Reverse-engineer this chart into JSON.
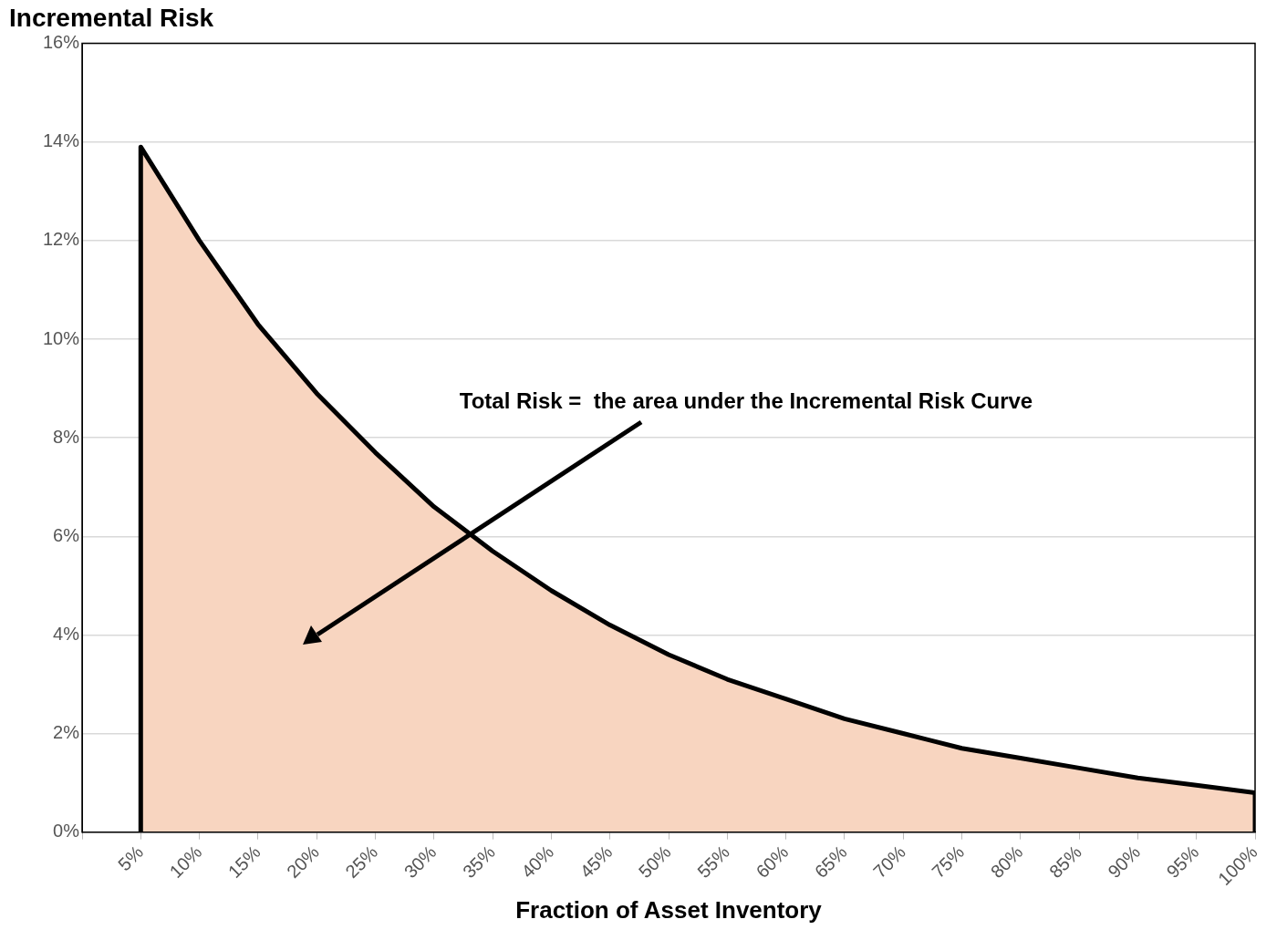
{
  "chart_data": {
    "type": "area",
    "title": "Incremental Risk",
    "xlabel": "Fraction of Asset Inventory",
    "x": [
      5,
      5,
      10,
      15,
      20,
      25,
      30,
      35,
      40,
      45,
      50,
      55,
      60,
      65,
      70,
      75,
      80,
      85,
      90,
      95,
      100,
      100
    ],
    "series": [
      {
        "color": "#f8d5c0",
        "values": [
          0,
          13.9,
          12.0,
          10.3,
          8.9,
          7.7,
          6.6,
          5.7,
          4.9,
          4.2,
          3.6,
          3.1,
          2.7,
          2.3,
          2.0,
          1.7,
          1.5,
          1.3,
          1.1,
          0.95,
          0.8,
          0
        ]
      }
    ],
    "xlim": [
      0,
      100
    ],
    "xticks": [
      {
        "value": 0,
        "label": null
      },
      {
        "value": 5,
        "label": "5%"
      },
      {
        "value": 10,
        "label": "10%"
      },
      {
        "value": 15,
        "label": "15%"
      },
      {
        "value": 20,
        "label": "20%"
      },
      {
        "value": 25,
        "label": "25%"
      },
      {
        "value": 30,
        "label": "30%"
      },
      {
        "value": 35,
        "label": "35%"
      },
      {
        "value": 40,
        "label": "40%"
      },
      {
        "value": 45,
        "label": "45%"
      },
      {
        "value": 50,
        "label": "50%"
      },
      {
        "value": 55,
        "label": "55%"
      },
      {
        "value": 60,
        "label": "60%"
      },
      {
        "value": 65,
        "label": "65%"
      },
      {
        "value": 70,
        "label": "70%"
      },
      {
        "value": 75,
        "label": "75%"
      },
      {
        "value": 80,
        "label": "80%"
      },
      {
        "value": 85,
        "label": "85%"
      },
      {
        "value": 90,
        "label": "90%"
      },
      {
        "value": 95,
        "label": "95%"
      },
      {
        "value": 100,
        "label": "100%"
      }
    ],
    "ylim": [
      0,
      16
    ],
    "yticks": [
      {
        "value": 0,
        "label": "0%"
      },
      {
        "value": 2,
        "label": "2%"
      },
      {
        "value": 4,
        "label": "4%"
      },
      {
        "value": 6,
        "label": "6%"
      },
      {
        "value": 8,
        "label": "8%"
      },
      {
        "value": 10,
        "label": "10%"
      },
      {
        "value": 12,
        "label": "12%"
      },
      {
        "value": 14,
        "label": "14%"
      },
      {
        "value": 16,
        "label": "16%"
      }
    ],
    "grid": "y",
    "legend": false,
    "annotations": [
      "Total Risk =  the area under the Incremental Risk Curve"
    ]
  }
}
